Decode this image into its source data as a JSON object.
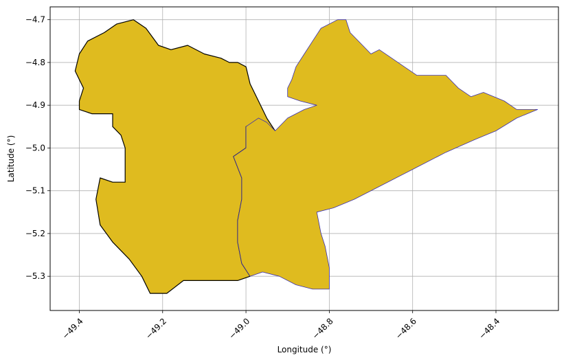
{
  "chart_data": {
    "type": "map",
    "title": "",
    "xlabel": "Longitude (°)",
    "ylabel": "Latitude (°)",
    "xlim": [
      -49.47,
      -48.25
    ],
    "ylim": [
      -5.38,
      -4.67
    ],
    "xticks": [
      -49.4,
      -49.2,
      -49.0,
      -48.8,
      -48.6,
      -48.4
    ],
    "xtick_labels": [
      "−49.4",
      "−49.2",
      "−49.0",
      "−48.8",
      "−48.6",
      "−48.4"
    ],
    "yticks": [
      -4.7,
      -4.8,
      -4.9,
      -5.0,
      -5.1,
      -5.2,
      -5.3
    ],
    "ytick_labels": [
      "−4.7",
      "−4.8",
      "−4.9",
      "−5.0",
      "−5.1",
      "−5.2",
      "−5.3"
    ],
    "grid": true,
    "fill_color": "#dfbb1f",
    "regions": [
      {
        "edge_color": "#000000",
        "coords": [
          [
            -49.4,
            -4.89
          ],
          [
            -49.39,
            -4.86
          ],
          [
            -49.41,
            -4.82
          ],
          [
            -49.4,
            -4.78
          ],
          [
            -49.38,
            -4.75
          ],
          [
            -49.34,
            -4.73
          ],
          [
            -49.31,
            -4.71
          ],
          [
            -49.27,
            -4.7
          ],
          [
            -49.24,
            -4.72
          ],
          [
            -49.21,
            -4.76
          ],
          [
            -49.18,
            -4.77
          ],
          [
            -49.14,
            -4.76
          ],
          [
            -49.1,
            -4.78
          ],
          [
            -49.06,
            -4.79
          ],
          [
            -49.04,
            -4.8
          ],
          [
            -49.02,
            -4.8
          ],
          [
            -49.0,
            -4.81
          ],
          [
            -48.99,
            -4.85
          ],
          [
            -48.97,
            -4.89
          ],
          [
            -48.95,
            -4.93
          ],
          [
            -48.93,
            -4.96
          ],
          [
            -48.97,
            -4.94
          ],
          [
            -49.0,
            -4.95
          ],
          [
            -49.0,
            -5.0
          ],
          [
            -49.03,
            -5.02
          ],
          [
            -49.01,
            -5.07
          ],
          [
            -49.01,
            -5.12
          ],
          [
            -49.02,
            -5.17
          ],
          [
            -49.02,
            -5.22
          ],
          [
            -49.01,
            -5.27
          ],
          [
            -48.99,
            -5.3
          ],
          [
            -49.02,
            -5.31
          ],
          [
            -49.06,
            -5.31
          ],
          [
            -49.1,
            -5.31
          ],
          [
            -49.15,
            -5.31
          ],
          [
            -49.19,
            -5.34
          ],
          [
            -49.23,
            -5.34
          ],
          [
            -49.25,
            -5.3
          ],
          [
            -49.28,
            -5.26
          ],
          [
            -49.32,
            -5.22
          ],
          [
            -49.35,
            -5.18
          ],
          [
            -49.36,
            -5.12
          ],
          [
            -49.35,
            -5.07
          ],
          [
            -49.32,
            -5.08
          ],
          [
            -49.29,
            -5.08
          ],
          [
            -49.29,
            -5.0
          ],
          [
            -49.3,
            -4.97
          ],
          [
            -49.32,
            -4.95
          ],
          [
            -49.32,
            -4.92
          ],
          [
            -49.37,
            -4.92
          ],
          [
            -49.4,
            -4.91
          ]
        ]
      },
      {
        "edge_color": "#3a2fb0",
        "coords": [
          [
            -49.0,
            -4.95
          ],
          [
            -48.97,
            -4.93
          ],
          [
            -48.95,
            -4.94
          ],
          [
            -48.93,
            -4.96
          ],
          [
            -48.9,
            -4.93
          ],
          [
            -48.86,
            -4.91
          ],
          [
            -48.83,
            -4.9
          ],
          [
            -48.87,
            -4.89
          ],
          [
            -48.9,
            -4.88
          ],
          [
            -48.9,
            -4.86
          ],
          [
            -48.89,
            -4.84
          ],
          [
            -48.88,
            -4.81
          ],
          [
            -48.86,
            -4.78
          ],
          [
            -48.84,
            -4.75
          ],
          [
            -48.82,
            -4.72
          ],
          [
            -48.78,
            -4.7
          ],
          [
            -48.76,
            -4.7
          ],
          [
            -48.75,
            -4.73
          ],
          [
            -48.72,
            -4.76
          ],
          [
            -48.7,
            -4.78
          ],
          [
            -48.68,
            -4.77
          ],
          [
            -48.65,
            -4.79
          ],
          [
            -48.62,
            -4.81
          ],
          [
            -48.59,
            -4.83
          ],
          [
            -48.56,
            -4.83
          ],
          [
            -48.52,
            -4.83
          ],
          [
            -48.49,
            -4.86
          ],
          [
            -48.46,
            -4.88
          ],
          [
            -48.43,
            -4.87
          ],
          [
            -48.38,
            -4.89
          ],
          [
            -48.35,
            -4.91
          ],
          [
            -48.3,
            -4.91
          ],
          [
            -48.35,
            -4.93
          ],
          [
            -48.4,
            -4.96
          ],
          [
            -48.45,
            -4.98
          ],
          [
            -48.52,
            -5.01
          ],
          [
            -48.6,
            -5.05
          ],
          [
            -48.68,
            -5.09
          ],
          [
            -48.74,
            -5.12
          ],
          [
            -48.79,
            -5.14
          ],
          [
            -48.83,
            -5.15
          ],
          [
            -48.82,
            -5.2
          ],
          [
            -48.81,
            -5.23
          ],
          [
            -48.8,
            -5.28
          ],
          [
            -48.8,
            -5.33
          ],
          [
            -48.84,
            -5.33
          ],
          [
            -48.88,
            -5.32
          ],
          [
            -48.92,
            -5.3
          ],
          [
            -48.96,
            -5.29
          ],
          [
            -48.99,
            -5.3
          ],
          [
            -49.01,
            -5.27
          ],
          [
            -49.02,
            -5.22
          ],
          [
            -49.02,
            -5.17
          ],
          [
            -49.01,
            -5.12
          ],
          [
            -49.01,
            -5.07
          ],
          [
            -49.03,
            -5.02
          ],
          [
            -49.0,
            -5.0
          ]
        ]
      }
    ]
  }
}
